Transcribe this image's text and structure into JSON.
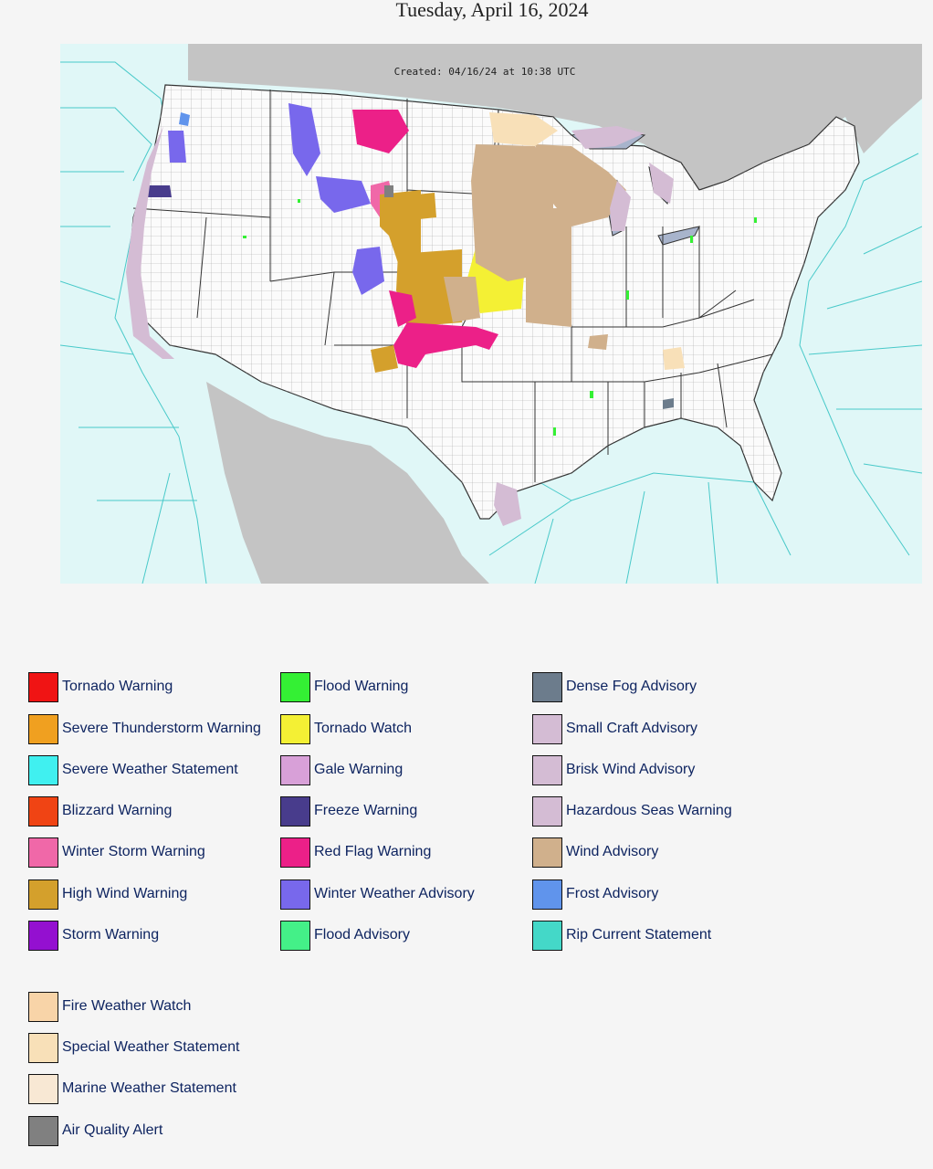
{
  "page": {
    "title": "Tuesday, April 16, 2024"
  },
  "map": {
    "created": "Created: 04/16/24 at 10:38 UTC",
    "colors": {
      "land": "#fbfbfb",
      "water": "#e0f7f7",
      "foreign_land": "#c4c4c4",
      "county_lines": "#9a9a9a",
      "state_lines": "#333333",
      "marine_lines": "#48c9c9"
    }
  },
  "legend": {
    "column1": [
      {
        "label": "Tornado Warning",
        "color": "#f01414"
      },
      {
        "label": "Severe Thunderstorm Warning",
        "color": "#f0a020"
      },
      {
        "label": "Severe Weather Statement",
        "color": "#40f0f0"
      },
      {
        "label": "Blizzard Warning",
        "color": "#f04414"
      },
      {
        "label": "Winter Storm Warning",
        "color": "#f068a8"
      },
      {
        "label": "High Wind Warning",
        "color": "#d4a02c"
      },
      {
        "label": "Storm Warning",
        "color": "#9410d0"
      }
    ],
    "column2": [
      {
        "label": "Flood Warning",
        "color": "#34f034"
      },
      {
        "label": "Tornado Watch",
        "color": "#f4f034"
      },
      {
        "label": "Gale Warning",
        "color": "#d8a0d8"
      },
      {
        "label": "Freeze Warning",
        "color": "#483c8c"
      },
      {
        "label": "Red Flag Warning",
        "color": "#ec2088"
      },
      {
        "label": "Winter Weather Advisory",
        "color": "#7868ec"
      },
      {
        "label": "Flood Advisory",
        "color": "#44f088"
      }
    ],
    "column3": [
      {
        "label": "Dense Fog Advisory",
        "color": "#6c7c8c"
      },
      {
        "label": "Small Craft Advisory",
        "color": "#d4bcd4"
      },
      {
        "label": "Brisk Wind Advisory",
        "color": "#d4bcd4"
      },
      {
        "label": "Hazardous Seas Warning",
        "color": "#d4bcd4"
      },
      {
        "label": "Wind Advisory",
        "color": "#d0b08c"
      },
      {
        "label": "Frost Advisory",
        "color": "#6094ec"
      },
      {
        "label": "Rip Current Statement",
        "color": "#44d8c8"
      }
    ],
    "column4": [
      {
        "label": "Fire Weather Watch",
        "color": "#f8d4a8"
      },
      {
        "label": "Special Weather Statement",
        "color": "#f8e0b8"
      },
      {
        "label": "Marine Weather Statement",
        "color": "#f8e8d4"
      },
      {
        "label": "Air Quality Alert",
        "color": "#808080"
      }
    ]
  }
}
